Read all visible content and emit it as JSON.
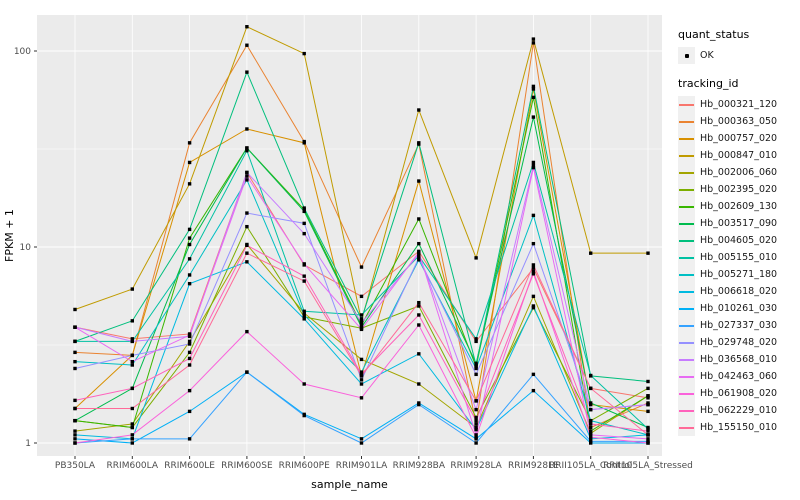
{
  "figure": {
    "x_axis_title": "sample_name",
    "y_axis_title": "FPKM + 1",
    "background": "#FFFFFF",
    "panel_background": "#EBEBEB",
    "gridline_color": "#FFFFFF",
    "axis_text_color": "#4D4D4D",
    "tick_color": "#333333",
    "point_color": "#000000"
  },
  "legend": {
    "quant_status_title": "quant_status",
    "quant_status_items": [
      {
        "label": "OK",
        "symbol": "black-point"
      }
    ],
    "tracking_id_title": "tracking_id"
  },
  "chart_data": {
    "type": "line",
    "xlabel": "sample_name",
    "ylabel": "FPKM + 1",
    "y_scale": "log10",
    "y_ticks": [
      1,
      10,
      100
    ],
    "y_tick_labels": [
      "1",
      "10",
      "100"
    ],
    "y_minor_ticks": [
      3.162,
      31.62
    ],
    "ylim": [
      0.84,
      155
    ],
    "grid": "major+minor horizontal, major vertical, white on gray panel",
    "legend_position": "right",
    "marker": "small black point at every observation (quant_status = OK)",
    "categories": [
      "PB350LA",
      "RRIM600LA",
      "RRIM600LE",
      "RRIM600SE",
      "RRIM600PE",
      "RRIM901LA",
      "RRIM928BA",
      "RRIM928LA",
      "RRIM928LE",
      "RRII105LA_Control",
      "RRII105LA_Stressed"
    ],
    "series": [
      {
        "name": "Hb_000321_120",
        "color": "#F8766D",
        "values": [
          3.9,
          3.4,
          3.6,
          24,
          8.1,
          5.6,
          9.5,
          3.3,
          7.8,
          1.9,
          1.7
        ]
      },
      {
        "name": "Hb_000363_050",
        "color": "#EA8331",
        "values": [
          2.9,
          2.8,
          34,
          107,
          34.5,
          7.9,
          33.5,
          1.25,
          110,
          1.2,
          1.6
        ]
      },
      {
        "name": "Hb_000757_020",
        "color": "#D89000",
        "values": [
          1.5,
          2.8,
          27,
          40,
          34,
          2.2,
          21.7,
          1.64,
          64,
          1.57,
          1.45
        ]
      },
      {
        "name": "Hb_000847_010",
        "color": "#C09B00",
        "values": [
          4.8,
          6.1,
          21,
          133,
          97,
          4.2,
          50,
          8.8,
          115,
          9.3,
          9.3
        ]
      },
      {
        "name": "Hb_002006_060",
        "color": "#A3A500",
        "values": [
          1.15,
          1.25,
          3.3,
          10.3,
          4.6,
          2.67,
          2.0,
          1.2,
          5.6,
          1.12,
          1.74
        ]
      },
      {
        "name": "Hb_002395_020",
        "color": "#7CAE00",
        "values": [
          1.3,
          1.2,
          2.9,
          12.7,
          4.4,
          3.85,
          5.0,
          1.35,
          4.9,
          1.3,
          1.9
        ]
      },
      {
        "name": "Hb_002609_130",
        "color": "#39B600",
        "values": [
          1.3,
          1.2,
          11.1,
          32,
          15.5,
          4.0,
          13.9,
          2.45,
          58,
          1.15,
          1.74
        ]
      },
      {
        "name": "Hb_003517_090",
        "color": "#00BB4E",
        "values": [
          1.3,
          1.9,
          10.3,
          32,
          15.2,
          3.9,
          10.4,
          2.55,
          46,
          1.6,
          1.2
        ]
      },
      {
        "name": "Hb_004605_020",
        "color": "#00BF7D",
        "values": [
          3.3,
          4.2,
          12.3,
          78,
          15.8,
          4.3,
          34,
          2.5,
          66,
          2.2,
          2.06
        ]
      },
      {
        "name": "Hb_005155_010",
        "color": "#00C1A3",
        "values": [
          3.3,
          3.3,
          8.7,
          31,
          4.7,
          4.5,
          9.0,
          3.4,
          27,
          2.21,
          1.18
        ]
      },
      {
        "name": "Hb_005271_180",
        "color": "#00BFC4",
        "values": [
          2.6,
          2.5,
          7.2,
          22,
          4.5,
          2.3,
          8.6,
          2.4,
          14.5,
          1.3,
          1.1
        ]
      },
      {
        "name": "Hb_006618_020",
        "color": "#00BAE0",
        "values": [
          1.1,
          1.05,
          6.5,
          8.4,
          4.3,
          2.0,
          2.85,
          1.17,
          5.0,
          1.05,
          1.1
        ]
      },
      {
        "name": "Hb_010261_030",
        "color": "#00B0F6",
        "values": [
          1.05,
          1.0,
          1.45,
          2.3,
          1.4,
          1.05,
          1.6,
          1.05,
          1.85,
          1.0,
          1.0
        ]
      },
      {
        "name": "Hb_027337_030",
        "color": "#35A2FF",
        "values": [
          1.0,
          1.05,
          1.05,
          2.3,
          1.38,
          1.0,
          1.57,
          1.0,
          2.24,
          1.02,
          1.02
        ]
      },
      {
        "name": "Hb_029748_020",
        "color": "#9590FF",
        "values": [
          2.4,
          2.8,
          3.2,
          14.9,
          13.2,
          2.1,
          8.8,
          2.24,
          10.4,
          1.48,
          1.57
        ]
      },
      {
        "name": "Hb_036568_010",
        "color": "#C77CFF",
        "values": [
          3.9,
          3.3,
          3.5,
          24,
          11.7,
          4.1,
          9.2,
          1.48,
          26,
          1.48,
          1.57
        ]
      },
      {
        "name": "Hb_042463_060",
        "color": "#E76BF3",
        "values": [
          3.9,
          2.6,
          3.55,
          23,
          8.2,
          3.8,
          9.4,
          1.1,
          25.4,
          1.1,
          1.05
        ]
      },
      {
        "name": "Hb_061908_020",
        "color": "#FA62DB",
        "values": [
          1.0,
          1.1,
          1.85,
          3.7,
          2.0,
          1.7,
          4.0,
          1.07,
          7.5,
          1.07,
          1.0
        ]
      },
      {
        "name": "Hb_062229_010",
        "color": "#FF62BC",
        "values": [
          1.65,
          1.9,
          2.7,
          10.2,
          7.1,
          2.25,
          4.5,
          1.3,
          7.3,
          1.25,
          1.15
        ]
      },
      {
        "name": "Hb_155150_010",
        "color": "#FF6A98",
        "values": [
          1.5,
          1.5,
          2.5,
          9.3,
          6.7,
          2.2,
          5.2,
          1.64,
          8.1,
          1.9,
          1.1
        ]
      }
    ]
  }
}
